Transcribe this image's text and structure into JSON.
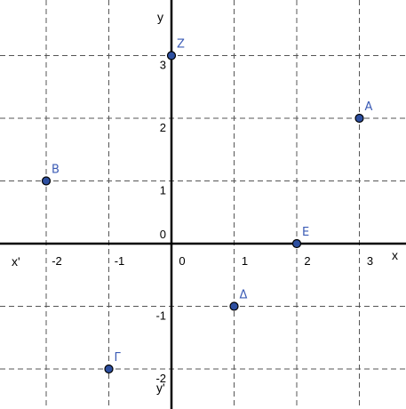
{
  "chart_data": {
    "type": "scatter",
    "xlim": [
      -2.6,
      3.6
    ],
    "ylim": [
      -2.55,
      3.7
    ],
    "grid": true,
    "x_ticks": [
      -2,
      -1,
      0,
      1,
      2,
      3
    ],
    "y_ticks": [
      -2,
      -1,
      0,
      1,
      2,
      3
    ],
    "x_tick_labels": [
      "-2",
      "-1",
      "0",
      "1",
      "2",
      "3"
    ],
    "y_tick_labels": [
      "-2",
      "-1",
      "0",
      "1",
      "2",
      "3"
    ],
    "axis_names": {
      "x_pos": "x",
      "x_neg": "x'",
      "y_pos": "y",
      "y_neg": "y'"
    },
    "points": [
      {
        "label": "Α",
        "x": 3,
        "y": 2
      },
      {
        "label": "Β",
        "x": -2,
        "y": 1
      },
      {
        "label": "Γ",
        "x": -1,
        "y": -2
      },
      {
        "label": "Δ",
        "x": 1,
        "y": -1
      },
      {
        "label": "Ε",
        "x": 2,
        "y": 0
      },
      {
        "label": "Ζ",
        "x": 0,
        "y": 3
      }
    ],
    "colors": {
      "point": "#2d4fa0",
      "label": "#3b5bb5",
      "grid": "#555555",
      "axis": "#000000"
    }
  }
}
